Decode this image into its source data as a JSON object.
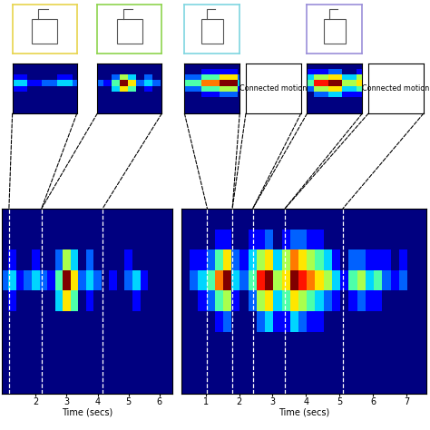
{
  "chart_data": [
    {
      "type": "heatmap",
      "xlabel": "Time (secs)",
      "xlim": [
        0.92,
        6.4
      ],
      "xticks": [
        2,
        3,
        4,
        5,
        6
      ],
      "tick_labels": "x",
      "x": [
        1.0,
        1.25,
        1.5,
        1.75,
        2.0,
        2.25,
        2.5,
        2.75,
        3.0,
        3.25,
        3.5,
        3.75,
        4.0,
        4.25,
        4.5,
        4.75,
        5.0,
        5.25,
        5.5,
        5.75,
        6.0,
        6.25
      ],
      "cells": [
        [
          0,
          0,
          0,
          0,
          0,
          0,
          0,
          0,
          0,
          0,
          0,
          0,
          0,
          0,
          0,
          0,
          0,
          0,
          0,
          0,
          0,
          0
        ],
        [
          0,
          0,
          0,
          0,
          0,
          0,
          0,
          0,
          0,
          0,
          0,
          0,
          0,
          0,
          0,
          0,
          0,
          0,
          0,
          0,
          0,
          0
        ],
        [
          0,
          0,
          0,
          0,
          0,
          0,
          0,
          0,
          0,
          0,
          0,
          0,
          0,
          0,
          0,
          0,
          0,
          0,
          0,
          0,
          0,
          0
        ],
        [
          0,
          0,
          0,
          0,
          0,
          0,
          0,
          0,
          0,
          0,
          0,
          0,
          0,
          0,
          0,
          0,
          0,
          0,
          0,
          0,
          0,
          0
        ],
        [
          0,
          1,
          0,
          0,
          0,
          0,
          0,
          3,
          6,
          4,
          0,
          1,
          0,
          0,
          0,
          0,
          0,
          1,
          0,
          0,
          0,
          0
        ],
        [
          2,
          3,
          1,
          2,
          3,
          2,
          1,
          4,
          9,
          6,
          2,
          3,
          2,
          0,
          1,
          0,
          2,
          3,
          1,
          0,
          0,
          0
        ],
        [
          0,
          1,
          0,
          0,
          1,
          0,
          0,
          2,
          5,
          3,
          0,
          2,
          0,
          0,
          0,
          0,
          1,
          0,
          0,
          0,
          0,
          0
        ],
        [
          0,
          0,
          0,
          0,
          0,
          0,
          0,
          0,
          0,
          0,
          0,
          0,
          0,
          0,
          0,
          0,
          0,
          0,
          0,
          0,
          0,
          0
        ],
        [
          0,
          0,
          0,
          0,
          0,
          0,
          0,
          0,
          0,
          0,
          0,
          0,
          0,
          0,
          0,
          0,
          0,
          0,
          0,
          0,
          0,
          0
        ]
      ],
      "segments": [
        {
          "from": 1.14,
          "to": 2.19,
          "color": "#e8d44d"
        },
        {
          "from": 2.19,
          "to": 4.16,
          "color": "#8fd44f"
        }
      ]
    },
    {
      "type": "heatmap",
      "xlabel": "Time (secs)",
      "xlim": [
        0.28,
        7.6
      ],
      "xticks": [
        1,
        2,
        3,
        4,
        5,
        6,
        7
      ],
      "tick_labels": "x",
      "x": [
        0.4,
        0.65,
        0.9,
        1.15,
        1.4,
        1.65,
        1.9,
        2.15,
        2.4,
        2.65,
        2.9,
        3.15,
        3.4,
        3.65,
        3.9,
        4.15,
        4.4,
        4.65,
        4.9,
        5.15,
        5.4,
        5.65,
        5.9,
        6.15,
        6.4,
        6.65,
        6.9,
        7.15,
        7.4
      ],
      "cells": [
        [
          0,
          0,
          0,
          0,
          0,
          0,
          0,
          0,
          0,
          0,
          0,
          0,
          0,
          0,
          0,
          0,
          0,
          0,
          0,
          0,
          0,
          0,
          0,
          0,
          0,
          0,
          0,
          0,
          0
        ],
        [
          0,
          0,
          0,
          0,
          0,
          0,
          0,
          0,
          0,
          0,
          0,
          0,
          0,
          0,
          0,
          0,
          0,
          0,
          0,
          0,
          0,
          0,
          0,
          0,
          0,
          0,
          0,
          0,
          0
        ],
        [
          0,
          0,
          0,
          0,
          0,
          0,
          0,
          0,
          0,
          0,
          0,
          0,
          0,
          0,
          0,
          0,
          0,
          0,
          0,
          0,
          0,
          0,
          0,
          0,
          0,
          0,
          0,
          0,
          0
        ],
        [
          0,
          0,
          0,
          0,
          1,
          2,
          0,
          0,
          0,
          2,
          3,
          1,
          1,
          3,
          2,
          1,
          1,
          0,
          0,
          0,
          0,
          0,
          0,
          0,
          0,
          0,
          0,
          0,
          0
        ],
        [
          0,
          0,
          1,
          2,
          4,
          5,
          1,
          0,
          2,
          5,
          6,
          3,
          4,
          6,
          5,
          4,
          3,
          2,
          1,
          0,
          1,
          2,
          1,
          1,
          0,
          0,
          0,
          0,
          0
        ],
        [
          0,
          2,
          3,
          4,
          7,
          9,
          3,
          2,
          4,
          8,
          9,
          5,
          6,
          9,
          8,
          7,
          6,
          5,
          3,
          1,
          4,
          5,
          3,
          4,
          2,
          1,
          2,
          0,
          0
        ],
        [
          0,
          1,
          1,
          2,
          4,
          6,
          2,
          1,
          3,
          5,
          6,
          3,
          5,
          7,
          6,
          5,
          4,
          3,
          1,
          0,
          2,
          2,
          1,
          1,
          1,
          0,
          1,
          0,
          0
        ],
        [
          0,
          0,
          0,
          0,
          1,
          1,
          0,
          0,
          1,
          1,
          2,
          0,
          1,
          2,
          2,
          1,
          1,
          0,
          0,
          0,
          0,
          0,
          0,
          0,
          0,
          0,
          0,
          0,
          0
        ],
        [
          0,
          0,
          0,
          0,
          0,
          0,
          0,
          0,
          0,
          0,
          0,
          0,
          0,
          0,
          0,
          0,
          0,
          0,
          0,
          0,
          0,
          0,
          0,
          0,
          0,
          0,
          0,
          0,
          0
        ]
      ],
      "segments": [
        {
          "from": 1.05,
          "to": 1.8,
          "color": "#7fd6e0"
        },
        {
          "from": 1.8,
          "to": 2.41,
          "label": "Connected motion"
        },
        {
          "from": 2.41,
          "to": 3.37,
          "color": "#9b8fd9"
        },
        {
          "from": 3.37,
          "to": 5.1,
          "label": "Connected motion"
        }
      ]
    }
  ]
}
